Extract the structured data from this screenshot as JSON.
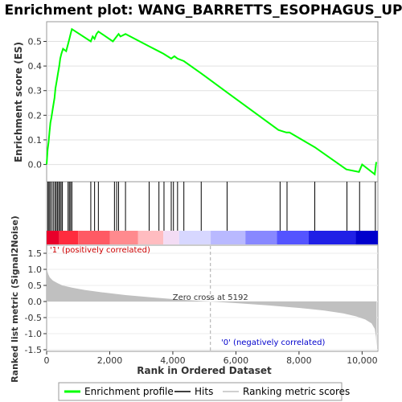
{
  "chart_data": [
    {
      "type": "line",
      "title": "Enrichment plot: WANG_BARRETTS_ESOPHAGUS_UP",
      "ylabel": "Enrichment score (ES)",
      "xlim": [
        0,
        10500
      ],
      "ylim": [
        -0.07,
        0.58
      ],
      "yticks": [
        0.0,
        0.1,
        0.2,
        0.3,
        0.4,
        0.5
      ],
      "ytick_labels": [
        "0.0",
        "0.1",
        "0.2",
        "0.3",
        "0.4",
        "0.5"
      ],
      "line_color": "#00ff00",
      "series": [
        {
          "name": "Enrichment profile",
          "x": [
            0,
            30,
            60,
            90,
            120,
            150,
            200,
            250,
            280,
            320,
            360,
            400,
            430,
            470,
            520,
            620,
            680,
            720,
            760,
            800,
            1400,
            1460,
            1520,
            1580,
            1640,
            2100,
            2160,
            2220,
            2280,
            2340,
            2500,
            3250,
            3550,
            3700,
            3950,
            4050,
            4150,
            4350,
            4900,
            5750,
            7350,
            7600,
            7700,
            8500,
            9500,
            9900,
            10000,
            10400,
            10450
          ],
          "y": [
            0.0,
            0.06,
            0.09,
            0.13,
            0.17,
            0.19,
            0.23,
            0.27,
            0.31,
            0.34,
            0.37,
            0.4,
            0.43,
            0.45,
            0.47,
            0.46,
            0.49,
            0.51,
            0.53,
            0.55,
            0.5,
            0.52,
            0.51,
            0.53,
            0.54,
            0.5,
            0.51,
            0.52,
            0.53,
            0.52,
            0.53,
            0.48,
            0.46,
            0.45,
            0.43,
            0.44,
            0.43,
            0.42,
            0.37,
            0.29,
            0.14,
            0.13,
            0.13,
            0.07,
            -0.02,
            -0.03,
            0.0,
            -0.04,
            0.01
          ]
        }
      ]
    },
    {
      "type": "bar",
      "title": "",
      "ylabel": "",
      "hits_label": "Hits",
      "hit_positions": [
        40,
        75,
        110,
        160,
        210,
        260,
        300,
        340,
        380,
        420,
        460,
        500,
        680,
        720,
        760,
        800,
        1400,
        1520,
        1640,
        2150,
        2220,
        2280,
        2500,
        3250,
        3560,
        3720,
        3950,
        4020,
        4150,
        4350,
        4900,
        5720,
        7400,
        7620,
        8500,
        9520,
        9920,
        10420
      ],
      "heatmap_colors": [
        "#e8002a",
        "#ff2c3e",
        "#ff5a64",
        "#ff8a8e",
        "#ffbcc0",
        "#f3dcf4",
        "#d7d7ff",
        "#b9b9ff",
        "#8888ff",
        "#5454ff",
        "#2020e6",
        "#0000cc"
      ],
      "heatmap_breaks": [
        0,
        400,
        1000,
        2000,
        2900,
        3700,
        4200,
        5200,
        6300,
        7300,
        8300,
        9800,
        10500
      ]
    },
    {
      "type": "area",
      "title": "",
      "xlabel": "Rank in Ordered Dataset",
      "ylabel": "Ranked list metric (Signal2Noise)",
      "xlim": [
        0,
        10500
      ],
      "ylim": [
        -1.55,
        1.75
      ],
      "xticks": [
        0,
        2000,
        4000,
        6000,
        8000,
        10000
      ],
      "xtick_labels": [
        "0",
        "2,000",
        "4,000",
        "6,000",
        "8,000",
        "10,000"
      ],
      "yticks": [
        -1.5,
        -1.0,
        -0.5,
        0.0,
        0.5,
        1.0,
        1.5
      ],
      "ytick_labels": [
        "-1.5",
        "-1.0",
        "-0.5",
        "0.0",
        "0.5",
        "1.0",
        "1.5"
      ],
      "fill_color": "#c0c0c0",
      "series": [
        {
          "name": "Ranking metric scores",
          "x": [
            0,
            20,
            50,
            100,
            200,
            350,
            500,
            800,
            1200,
            1800,
            2500,
            3300,
            4200,
            5192,
            6000,
            7000,
            8000,
            8800,
            9400,
            9800,
            10100,
            10300,
            10400,
            10440,
            10460
          ],
          "y": [
            1.1,
            0.95,
            0.85,
            0.75,
            0.65,
            0.57,
            0.5,
            0.43,
            0.36,
            0.28,
            0.2,
            0.13,
            0.06,
            0.0,
            -0.05,
            -0.12,
            -0.2,
            -0.28,
            -0.37,
            -0.46,
            -0.56,
            -0.68,
            -0.85,
            -1.1,
            -1.4
          ]
        }
      ],
      "zero_cross_label": "Zero cross at 5192",
      "zero_cross_x": 5192,
      "positive_label": "'1' (positively correlated)",
      "negative_label": "'0' (negatively correlated)",
      "positive_color": "#cc0000",
      "negative_color": "#0000cc"
    }
  ],
  "legend": {
    "items": [
      {
        "label": "Enrichment profile",
        "color": "#00ff00"
      },
      {
        "label": "Hits",
        "color": "#000000"
      },
      {
        "label": "Ranking metric scores",
        "color": "#c0c0c0"
      }
    ]
  }
}
